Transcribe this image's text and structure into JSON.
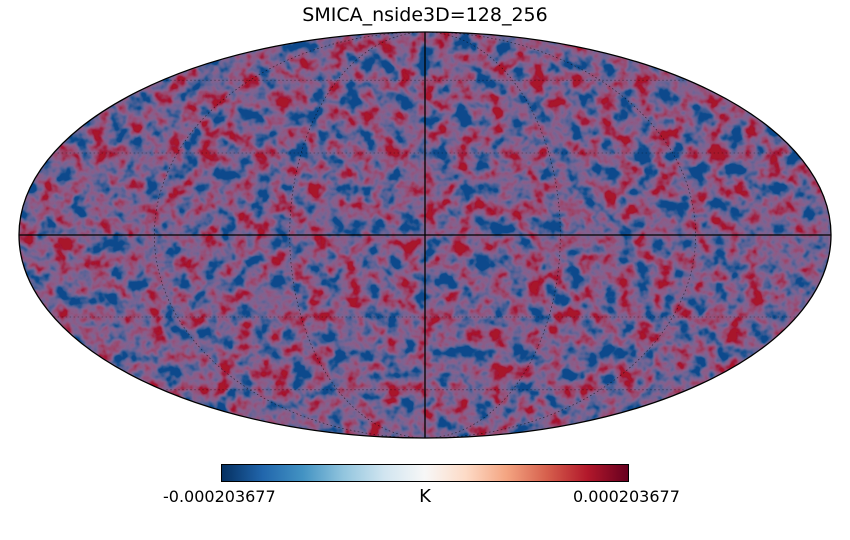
{
  "title": "SMICA_nside3D=128_256",
  "projection": "mollweide",
  "graticule": true,
  "colormap": {
    "name": "RdBu_r",
    "stops": [
      "#053061",
      "#2166ac",
      "#4393c3",
      "#92c5de",
      "#d1e5f0",
      "#f7f7f7",
      "#fddbc7",
      "#f4a582",
      "#d6604d",
      "#b2182b",
      "#67001f"
    ]
  },
  "colorbar": {
    "min_label": "-0.000203677",
    "max_label": "0.000203677",
    "unit": "K"
  }
}
